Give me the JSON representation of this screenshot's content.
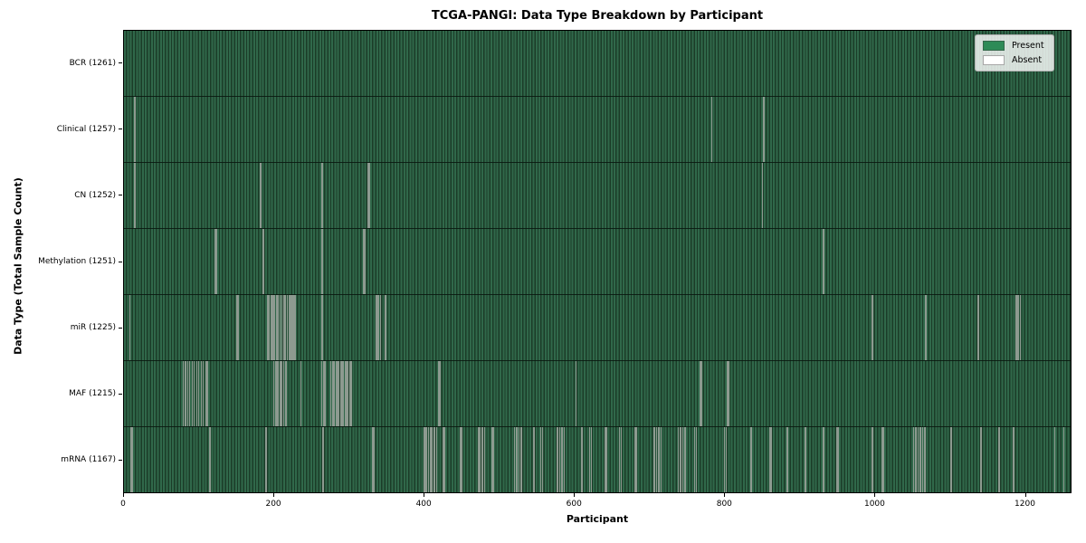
{
  "chart_data": {
    "type": "heatmap",
    "title": "TCGA-PANGI: Data Type Breakdown by Participant",
    "xlabel": "Participant",
    "ylabel": "Data Type (Total Sample Count)",
    "x_ticks": [
      0,
      200,
      400,
      600,
      800,
      1000,
      1200
    ],
    "x_max": 1262,
    "total_participants": 1261,
    "grid": false,
    "legend_position": "upper right",
    "legend": [
      {
        "label": "Present",
        "color": "#2e8b57"
      },
      {
        "label": "Absent",
        "color": "#ffffff"
      }
    ],
    "colors": {
      "present_fill": "#2e8b57",
      "present_render_light": "#30684a",
      "present_render_dark": "#1b3c28",
      "absent_line": "#8d9a90",
      "axis": "#000000"
    },
    "rows": [
      {
        "name": "BCR",
        "label": "BCR (1261)",
        "present_count": 1261,
        "absent": []
      },
      {
        "name": "Clinical",
        "label": "Clinical (1257)",
        "present_count": 1257,
        "absent": [
          13,
          14,
          783,
          852
        ]
      },
      {
        "name": "CN",
        "label": "CN (1252)",
        "present_count": 1252,
        "absent": [
          13,
          14,
          181,
          182,
          263,
          264,
          325,
          326,
          850
        ]
      },
      {
        "name": "Methylation",
        "label": "Methylation (1251)",
        "present_count": 1251,
        "absent": [
          121,
          122,
          184,
          185,
          263,
          264,
          319,
          320,
          931,
          932
        ]
      },
      {
        "name": "miR",
        "label": "miR (1225)",
        "present_count": 1225,
        "absent": [
          7,
          150,
          151,
          191,
          193,
          196,
          198,
          200,
          203,
          205,
          207,
          210,
          212,
          214,
          217,
          219,
          221,
          223,
          225,
          227,
          263,
          264,
          336,
          338,
          341,
          348,
          996,
          997,
          1068,
          1069,
          1138,
          1139,
          1188,
          1190,
          1192,
          1194
        ]
      },
      {
        "name": "MAF",
        "label": "MAF (1215)",
        "present_count": 1215,
        "absent": [
          78,
          81,
          84,
          87,
          90,
          93,
          96,
          99,
          102,
          105,
          108,
          110,
          199,
          201,
          203,
          205,
          207,
          209,
          212,
          215,
          235,
          263,
          265,
          267,
          275,
          277,
          278,
          280,
          282,
          284,
          286,
          288,
          290,
          292,
          294,
          296,
          298,
          300,
          302,
          419,
          421,
          602,
          767,
          769,
          804,
          806
        ]
      },
      {
        "name": "mRNA",
        "label": "mRNA (1167)",
        "present_count": 1167,
        "absent": [
          9,
          10,
          113,
          114,
          188,
          189,
          264,
          265,
          331,
          332,
          399,
          401,
          403,
          405,
          408,
          410,
          413,
          416,
          425,
          427,
          448,
          449,
          472,
          474,
          477,
          480,
          490,
          492,
          520,
          523,
          526,
          529,
          545,
          546,
          555,
          557,
          577,
          580,
          583,
          586,
          609,
          610,
          620,
          622,
          641,
          642,
          660,
          662,
          680,
          682,
          706,
          709,
          712,
          715,
          738,
          741,
          744,
          747,
          760,
          762,
          800,
          802,
          835,
          836,
          860,
          862,
          883,
          884,
          907,
          908,
          931,
          932,
          950,
          952,
          996,
          997,
          1010,
          1012,
          1052,
          1055,
          1058,
          1061,
          1064,
          1067,
          1101,
          1102,
          1141,
          1142,
          1165,
          1166,
          1185,
          1186,
          1240,
          1252
        ]
      }
    ]
  }
}
